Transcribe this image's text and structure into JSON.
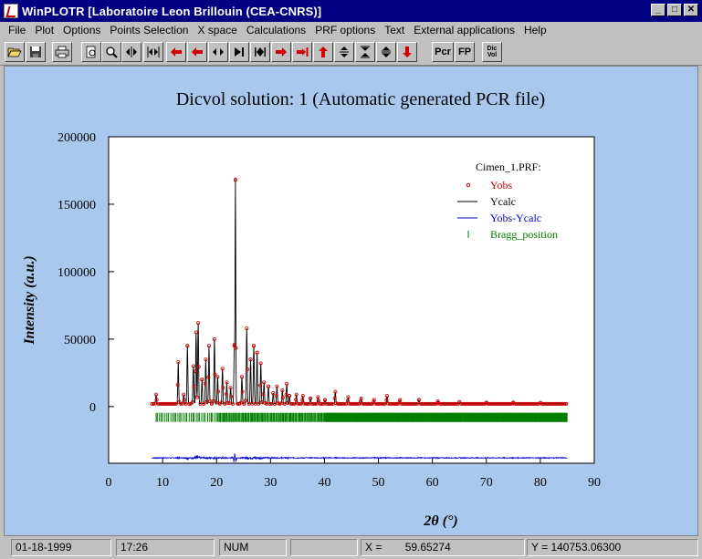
{
  "window": {
    "title": "WinPLOTR [Laboratoire Leon Brillouin (CEA-CNRS)]"
  },
  "menu": [
    "File",
    "Plot",
    "Options",
    "Points Selection",
    "X space",
    "Calculations",
    "PRF options",
    "Text",
    "External applications",
    "Help"
  ],
  "toolbar": {
    "buttons": [
      {
        "name": "open-icon",
        "glyph": "📂"
      },
      {
        "name": "save-icon",
        "glyph": "💾"
      },
      {
        "name": "print-icon",
        "glyph": "🖶"
      },
      {
        "name": "preview-icon",
        "glyph": "▯"
      },
      {
        "name": "zoom-icon",
        "glyph": "🔍"
      },
      {
        "name": "expand-h-icon",
        "glyph": "◆"
      },
      {
        "name": "compress-h-icon",
        "glyph": "⧓"
      },
      {
        "name": "arrow-left-red-icon",
        "glyph": "⇦"
      },
      {
        "name": "arrow-left-red2-icon",
        "glyph": "⇦"
      },
      {
        "name": "expand-x-icon",
        "glyph": "◂▸"
      },
      {
        "name": "step-right-icon",
        "glyph": "▸|"
      },
      {
        "name": "fast-forward-icon",
        "glyph": "|◂▸|"
      },
      {
        "name": "arrow-right-red-icon",
        "glyph": "⇨"
      },
      {
        "name": "arrow-right-end-red-icon",
        "glyph": "⇥"
      },
      {
        "name": "arrow-up-red-icon",
        "glyph": "⇧"
      },
      {
        "name": "expand-y-icon",
        "glyph": "◆"
      },
      {
        "name": "compress-y-icon",
        "glyph": "⧗"
      },
      {
        "name": "scale-y-icon",
        "glyph": "≑"
      },
      {
        "name": "arrow-down-red-icon",
        "glyph": "⇩"
      }
    ],
    "text_buttons": [
      {
        "name": "pcr-button",
        "label": "Pcr"
      },
      {
        "name": "fp-button",
        "label": "FP"
      },
      {
        "name": "dicvol-button",
        "label": "Dic Vol"
      }
    ]
  },
  "colors": {
    "obs": "#d00000",
    "calc": "#000000",
    "diff": "#0000c8",
    "bragg": "#008000",
    "canvas": "#aac8ee"
  },
  "status": {
    "date": "01-18-1999",
    "time": "17:26",
    "num": "NUM",
    "blank": "",
    "x_label": "X =",
    "x_value": "59.65274",
    "y_value": "Y = 140753.06300"
  },
  "chart_data": {
    "type": "line",
    "title": "Dicvol solution: 1 (Automatic generated PCR file)",
    "xlabel": "2θ (°)",
    "ylabel": "Intensity (a.u.)",
    "xlim": [
      0,
      90
    ],
    "ylim": [
      -42000,
      200000
    ],
    "x_ticks": [
      0,
      10,
      20,
      30,
      40,
      50,
      60,
      70,
      80,
      90
    ],
    "y_ticks": [
      0,
      50000,
      100000,
      150000,
      200000
    ],
    "legend_title": "Cimen_1.PRF:",
    "legend": [
      "Yobs",
      "Ycalc",
      "Yobs-Ycalc",
      "Bragg_position"
    ],
    "legend_placement": "top-right",
    "x_range": [
      8,
      85
    ],
    "background_level": 2000,
    "peaks": [
      {
        "x": 8.8,
        "y": 9000
      },
      {
        "x": 12.9,
        "y": 33000
      },
      {
        "x": 13.9,
        "y": 9000
      },
      {
        "x": 14.6,
        "y": 45000
      },
      {
        "x": 15.7,
        "y": 30000
      },
      {
        "x": 16.2,
        "y": 55000
      },
      {
        "x": 16.6,
        "y": 62000
      },
      {
        "x": 17.3,
        "y": 20000
      },
      {
        "x": 18.0,
        "y": 35000
      },
      {
        "x": 18.6,
        "y": 45000
      },
      {
        "x": 19.6,
        "y": 50000
      },
      {
        "x": 20.2,
        "y": 22000
      },
      {
        "x": 21.1,
        "y": 28000
      },
      {
        "x": 21.9,
        "y": 18000
      },
      {
        "x": 22.6,
        "y": 14000
      },
      {
        "x": 23.3,
        "y": 45000
      },
      {
        "x": 23.5,
        "y": 168000
      },
      {
        "x": 24.7,
        "y": 22000
      },
      {
        "x": 25.6,
        "y": 58000
      },
      {
        "x": 26.3,
        "y": 35000
      },
      {
        "x": 26.9,
        "y": 45000
      },
      {
        "x": 27.5,
        "y": 40000
      },
      {
        "x": 28.2,
        "y": 32000
      },
      {
        "x": 28.8,
        "y": 18000
      },
      {
        "x": 29.6,
        "y": 15000
      },
      {
        "x": 30.5,
        "y": 10000
      },
      {
        "x": 31.2,
        "y": 15000
      },
      {
        "x": 32.2,
        "y": 12000
      },
      {
        "x": 33.0,
        "y": 17000
      },
      {
        "x": 33.5,
        "y": 8000
      },
      {
        "x": 34.8,
        "y": 9000
      },
      {
        "x": 36.0,
        "y": 8000
      },
      {
        "x": 37.4,
        "y": 6000
      },
      {
        "x": 38.8,
        "y": 7000
      },
      {
        "x": 40.1,
        "y": 5000
      },
      {
        "x": 42.0,
        "y": 11000
      },
      {
        "x": 44.4,
        "y": 7000
      },
      {
        "x": 46.8,
        "y": 6000
      },
      {
        "x": 49.2,
        "y": 5000
      },
      {
        "x": 51.6,
        "y": 8000
      },
      {
        "x": 54.0,
        "y": 5000
      },
      {
        "x": 57.5,
        "y": 5000
      },
      {
        "x": 61.0,
        "y": 4000
      },
      {
        "x": 65.0,
        "y": 3500
      },
      {
        "x": 70.0,
        "y": 3000
      },
      {
        "x": 75.0,
        "y": 3000
      },
      {
        "x": 80.0,
        "y": 2800
      }
    ],
    "bragg_y": -8000,
    "diff_offset": -38000
  }
}
